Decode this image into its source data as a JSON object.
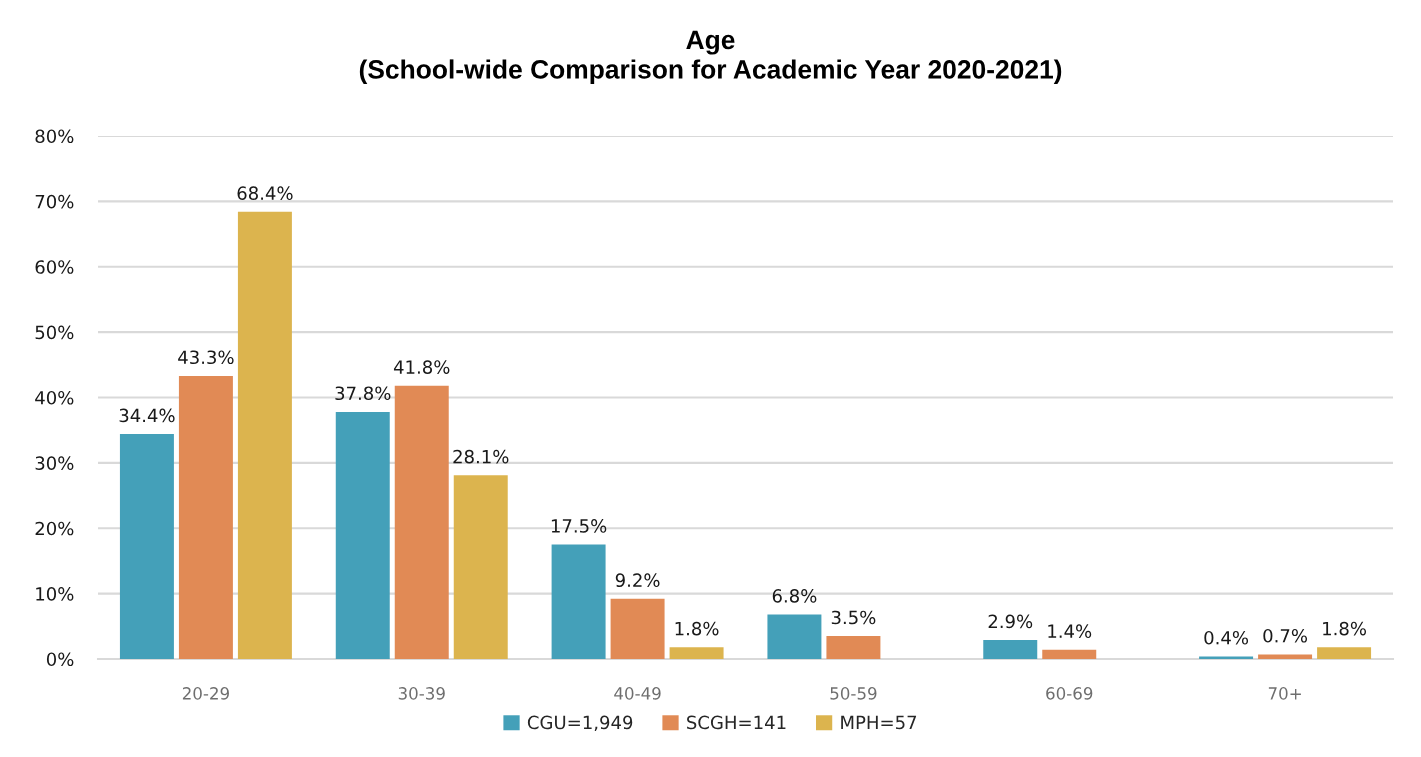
{
  "chart_data": {
    "type": "bar",
    "title": "Age\n(School-wide Comparison for Academic Year 2020-2021)",
    "categories": [
      "20-29",
      "30-39",
      "40-49",
      "50-59",
      "60-69",
      "70+"
    ],
    "series": [
      {
        "name": "CGU=1,949",
        "color": "#44a0b9",
        "values": [
          34.4,
          37.8,
          17.5,
          6.8,
          2.9,
          0.4
        ],
        "value_labels": [
          "34.4%",
          "37.8%",
          "17.5%",
          "6.8%",
          "2.9%",
          "0.4%"
        ]
      },
      {
        "name": "SCGH=141",
        "color": "#e18a55",
        "values": [
          43.3,
          41.8,
          9.2,
          3.5,
          1.4,
          0.7
        ],
        "value_labels": [
          "43.3%",
          "41.8%",
          "9.2%",
          "3.5%",
          "1.4%",
          "0.7%"
        ]
      },
      {
        "name": "MPH=57",
        "color": "#dcb44e",
        "values": [
          68.4,
          28.1,
          1.8,
          null,
          null,
          1.8
        ],
        "value_labels": [
          "68.4%",
          "28.1%",
          "1.8%",
          null,
          null,
          "1.8%"
        ]
      }
    ],
    "ylim": [
      0,
      80
    ],
    "yticks": [
      {
        "value": 0,
        "label": "0%"
      },
      {
        "value": 10,
        "label": "10%"
      },
      {
        "value": 20,
        "label": "20%"
      },
      {
        "value": 30,
        "label": "30%"
      },
      {
        "value": 40,
        "label": "40%"
      },
      {
        "value": 50,
        "label": "50%"
      },
      {
        "value": 60,
        "label": "60%"
      },
      {
        "value": 70,
        "label": "70%"
      },
      {
        "value": 80,
        "label": "80%"
      }
    ],
    "grid": "y",
    "legend": "bottom"
  }
}
